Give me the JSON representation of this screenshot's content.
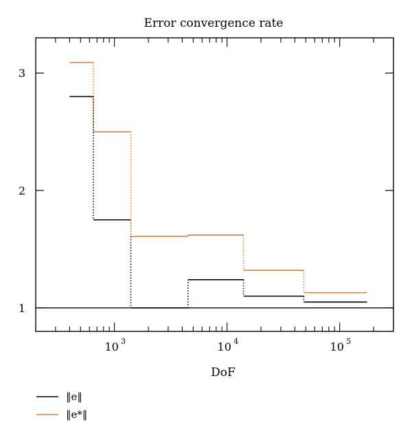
{
  "chart_data": {
    "type": "line",
    "title": "Error convergence rate",
    "xlabel": "DoF",
    "ylabel": "",
    "x_scale": "log",
    "xlim": [
      200,
      300000
    ],
    "ylim": [
      0.8,
      3.3
    ],
    "x_ticks": [
      {
        "value": 1000,
        "base": "10",
        "exp": "3"
      },
      {
        "value": 10000,
        "base": "10",
        "exp": "4"
      },
      {
        "value": 100000,
        "base": "10",
        "exp": "5"
      }
    ],
    "y_ticks": [
      {
        "value": 1,
        "label": "1"
      },
      {
        "value": 2,
        "label": "2"
      },
      {
        "value": 3,
        "label": "3"
      }
    ],
    "reference_line": 1,
    "grid": false,
    "legend_position": "bottom-left",
    "series": [
      {
        "name": "‖e‖",
        "color": "#000000",
        "steps": [
          {
            "x0": 400,
            "x1": 650,
            "y": 2.8
          },
          {
            "x0": 650,
            "x1": 1400,
            "y": 1.75
          },
          {
            "x0": 1400,
            "x1": 4500,
            "y": 1.0
          },
          {
            "x0": 4500,
            "x1": 14000,
            "y": 1.24
          },
          {
            "x0": 14000,
            "x1": 48000,
            "y": 1.1
          },
          {
            "x0": 48000,
            "x1": 175000,
            "y": 1.05
          }
        ]
      },
      {
        "name": "‖e*‖",
        "color": "#c8843c",
        "steps": [
          {
            "x0": 400,
            "x1": 650,
            "y": 3.09
          },
          {
            "x0": 650,
            "x1": 1400,
            "y": 2.5
          },
          {
            "x0": 1400,
            "x1": 4500,
            "y": 1.61
          },
          {
            "x0": 4500,
            "x1": 14000,
            "y": 1.62
          },
          {
            "x0": 14000,
            "x1": 48000,
            "y": 1.32
          },
          {
            "x0": 48000,
            "x1": 175000,
            "y": 1.13
          }
        ]
      }
    ]
  }
}
